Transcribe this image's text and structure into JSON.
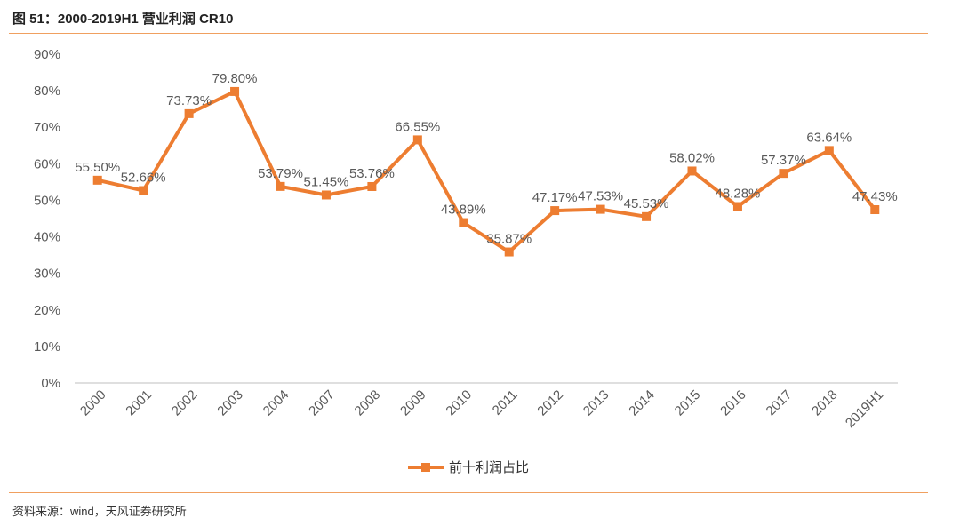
{
  "figure_title": "图 51：2000-2019H1 营业利润 CR10",
  "source": "资料来源：wind，天风证券研究所",
  "colors": {
    "series": "#ED7D31",
    "axis": "#BFBFBF",
    "text": "#595959",
    "rule": "#F0A060"
  },
  "chart_data": {
    "type": "line",
    "categories": [
      "2000",
      "2001",
      "2002",
      "2003",
      "2004",
      "2007",
      "2008",
      "2009",
      "2010",
      "2011",
      "2012",
      "2013",
      "2014",
      "2015",
      "2016",
      "2017",
      "2018",
      "2019H1"
    ],
    "series": [
      {
        "name": "前十利润占比",
        "values": [
          55.5,
          52.66,
          73.73,
          79.8,
          53.79,
          51.45,
          53.76,
          66.55,
          43.89,
          35.87,
          47.17,
          47.53,
          45.53,
          58.02,
          48.28,
          57.37,
          63.64,
          47.43
        ],
        "labels": [
          "55.50%",
          "52.66%",
          "73.73%",
          "79.80%",
          "53.79%",
          "51.45%",
          "53.76%",
          "66.55%",
          "43.89%",
          "35.87%",
          "47.17%",
          "47.53%",
          "45.53%",
          "58.02%",
          "48.28%",
          "57.37%",
          "63.64%",
          "47.43%"
        ],
        "marker": "square"
      }
    ],
    "ylim": [
      0,
      90
    ],
    "yticks": [
      "0%",
      "10%",
      "20%",
      "30%",
      "40%",
      "50%",
      "60%",
      "70%",
      "80%",
      "90%"
    ],
    "xlabel": "",
    "ylabel": "",
    "grid": false,
    "legend": "bottom"
  }
}
